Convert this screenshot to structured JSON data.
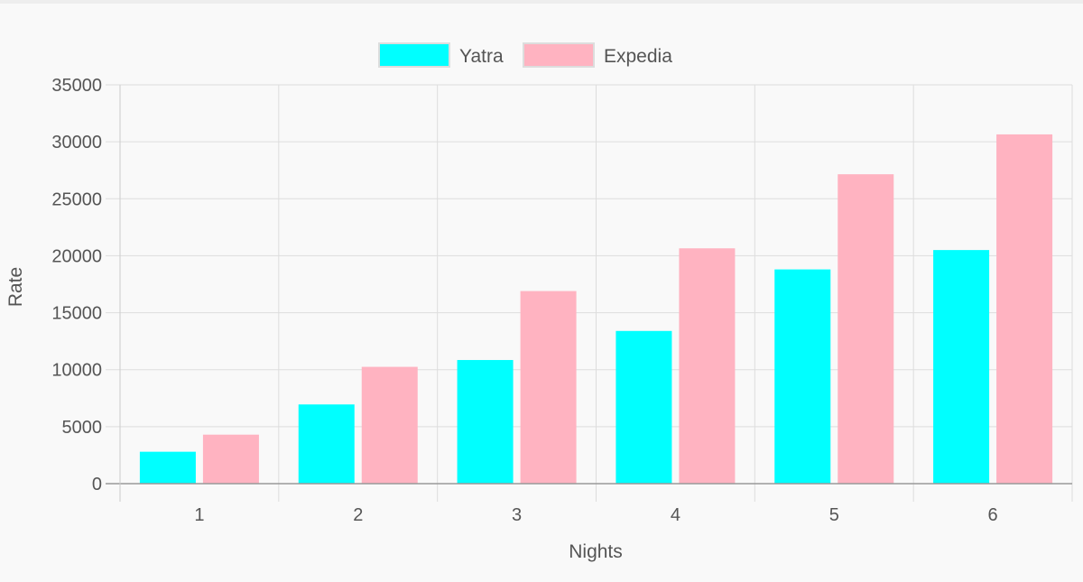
{
  "chart_data": {
    "type": "bar",
    "categories": [
      "1",
      "2",
      "3",
      "4",
      "5",
      "6"
    ],
    "series": [
      {
        "name": "Yatra",
        "values": [
          2800,
          6950,
          10850,
          13400,
          18800,
          20500
        ],
        "color": "#00ffff"
      },
      {
        "name": "Expedia",
        "values": [
          4300,
          10250,
          16900,
          20650,
          27150,
          30650
        ],
        "color": "#ffb3c1"
      }
    ],
    "xlabel": "Nights",
    "ylabel": "Rate",
    "ylim": [
      0,
      35000
    ],
    "yticks": [
      "0",
      "5000",
      "10000",
      "15000",
      "20000",
      "25000",
      "30000",
      "35000"
    ],
    "grid": true,
    "legend_position": "top"
  }
}
